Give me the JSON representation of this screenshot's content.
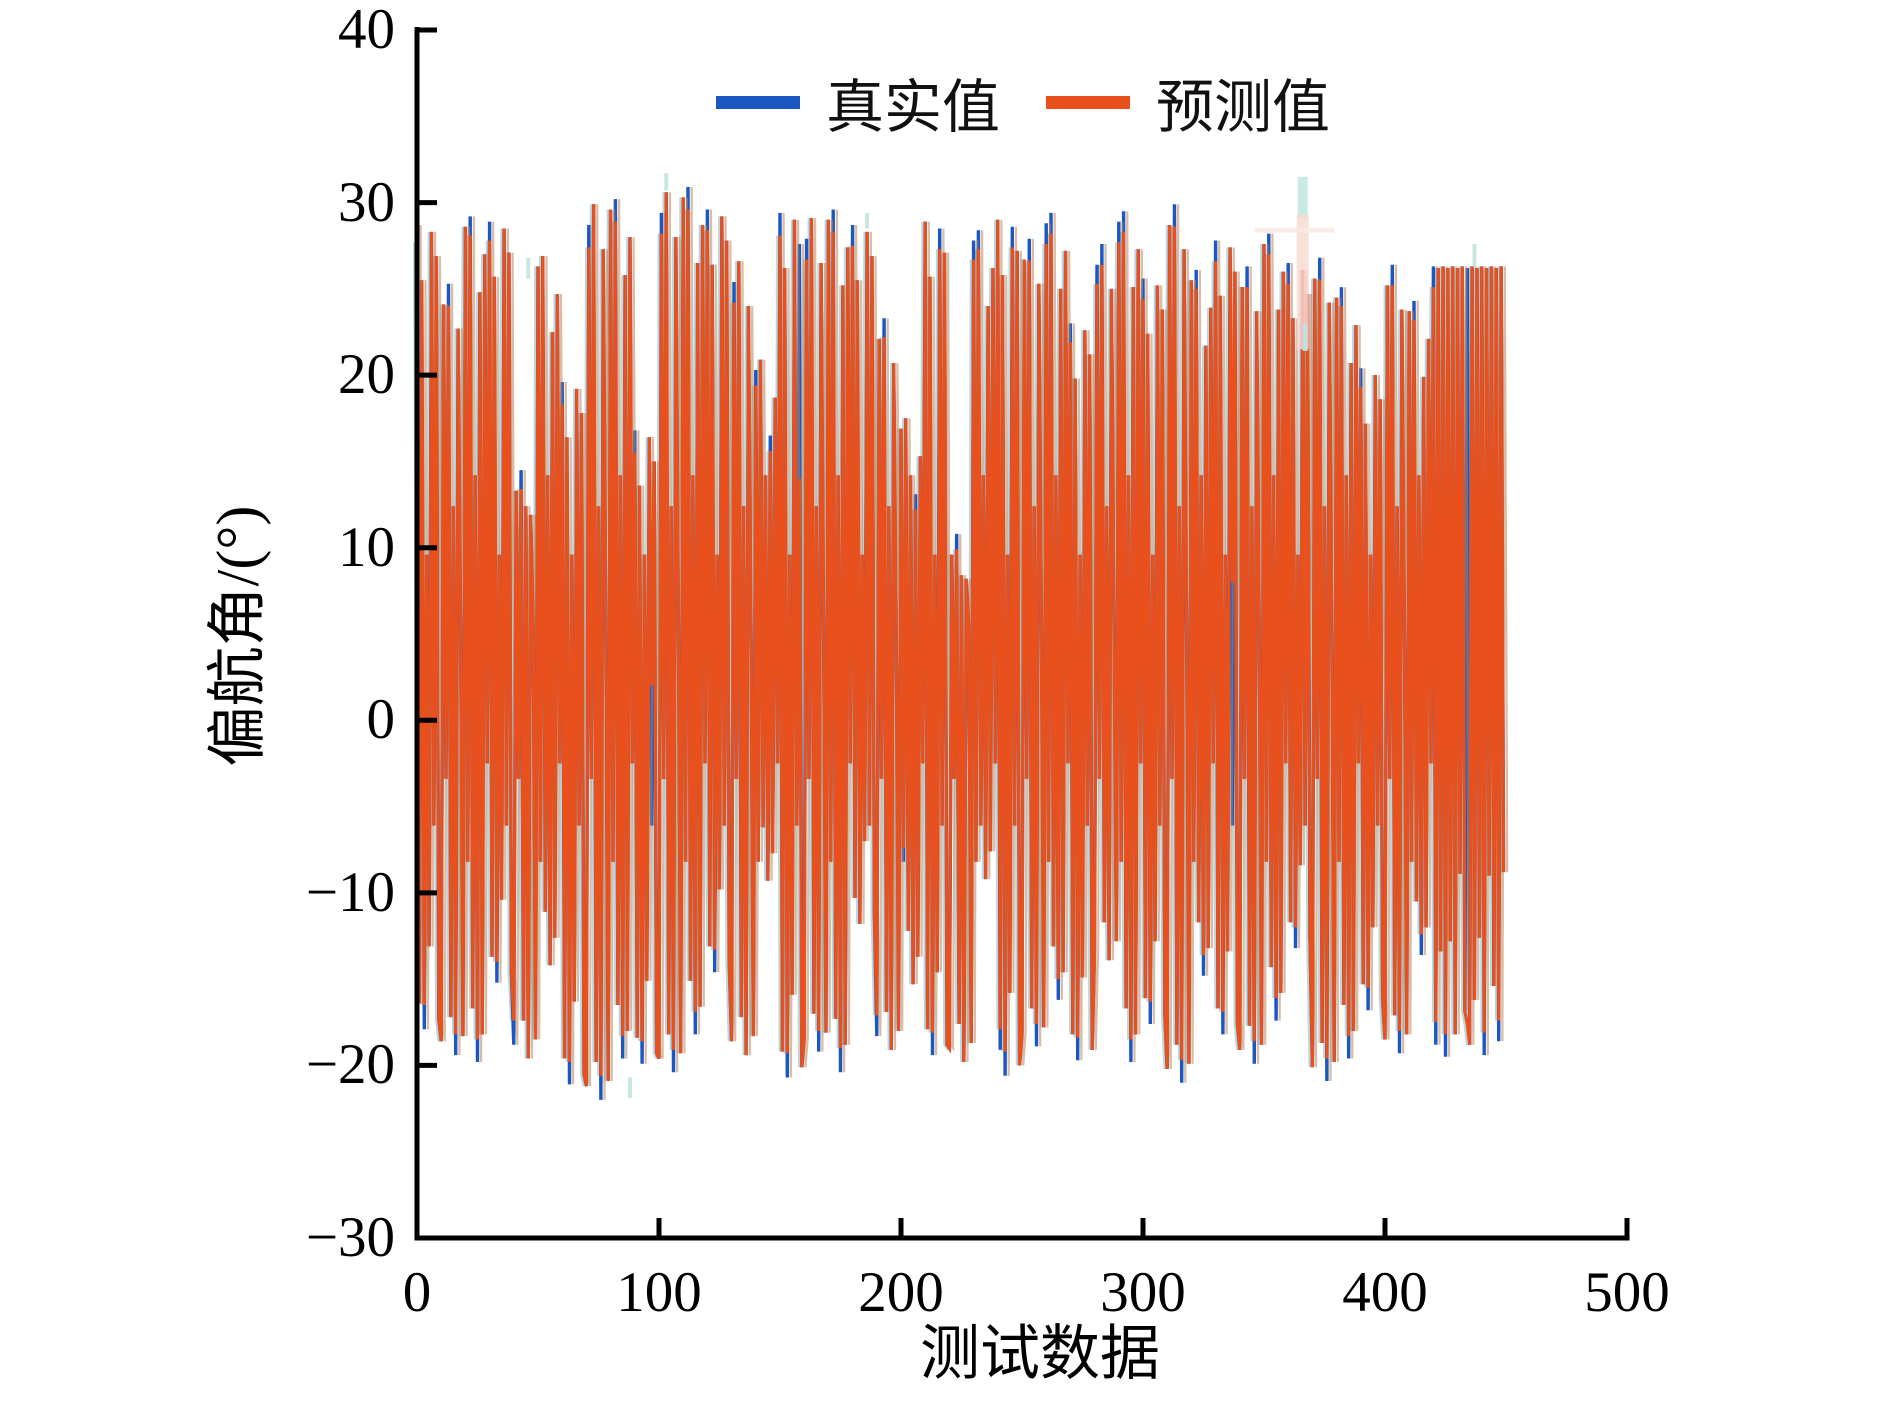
{
  "chart_data": {
    "type": "line",
    "title": "",
    "xlabel": "测试数据",
    "ylabel": "偏航角/(°)",
    "xlim": [
      0,
      500
    ],
    "ylim": [
      -30,
      40
    ],
    "grid": false,
    "legend_position": "top-center",
    "xticks": [
      0,
      100,
      200,
      300,
      400,
      500
    ],
    "xtick_labels": [
      "0",
      "100",
      "200",
      "300",
      "400",
      "500"
    ],
    "yticks": [
      40,
      30,
      20,
      10,
      0,
      -10,
      -20,
      -30
    ],
    "ytick_labels": [
      "40",
      "30",
      "20",
      "10",
      "0",
      "−10",
      "−20",
      "−30"
    ],
    "axis_color": "#000000",
    "ghost_color": "#b9855c",
    "halo_color": "#a6cdd6",
    "series": [
      {
        "name": "真实值",
        "color": "#1b57c2",
        "x_start": 0,
        "x_step": 1,
        "values": [
          28.7,
          -16.4,
          25.5,
          -17.9,
          9.6,
          -13.1,
          28.3,
          -6.1,
          26.9,
          -17.3,
          -18.6,
          24.1,
          -3.4,
          25.3,
          -17.2,
          12.4,
          -19.4,
          22.7,
          5.3,
          -18.3,
          28.6,
          -8.2,
          29.2,
          -16.7,
          14.2,
          -19.8,
          24.8,
          -18.2,
          27.0,
          -2.5,
          28.9,
          -13.7,
          25.7,
          -15.2,
          9.6,
          -10.4,
          28.5,
          -6.1,
          27.1,
          -14.6,
          -18.8,
          13.3,
          -3.4,
          14.5,
          -17.4,
          12.4,
          -19.6,
          11.9,
          5.3,
          -18.5,
          26.3,
          -8.2,
          26.9,
          -11.1,
          14.2,
          -14.2,
          22.5,
          -12.6,
          24.7,
          -2.5,
          19.6,
          -19.6,
          16.4,
          -21.1,
          9.6,
          -16.3,
          19.2,
          -6.1,
          17.8,
          -20.5,
          -21.2,
          28.7,
          -3.4,
          29.9,
          -19.8,
          12.4,
          -22.0,
          27.3,
          5.3,
          -20.9,
          29.6,
          -8.2,
          30.2,
          -16.5,
          14.2,
          -19.6,
          25.8,
          -18.0,
          28.0,
          -2.5,
          16.8,
          -18.4,
          13.6,
          -19.9,
          9.6,
          -15.1,
          16.4,
          -6.1,
          15.0,
          -19.3,
          -19.6,
          29.4,
          -3.4,
          30.6,
          -18.2,
          12.4,
          -20.4,
          28.0,
          5.3,
          -19.3,
          30.3,
          -8.2,
          30.9,
          -15.1,
          14.2,
          -18.2,
          26.5,
          -16.6,
          28.7,
          -2.5,
          29.6,
          -13.1,
          26.4,
          -14.6,
          9.6,
          -9.8,
          29.2,
          -6.1,
          27.8,
          -14.0,
          -18.6,
          25.4,
          -3.4,
          26.6,
          -17.2,
          12.4,
          -19.4,
          24.0,
          5.3,
          -18.3,
          20.3,
          -8.2,
          20.9,
          -6.2,
          14.2,
          -9.3,
          16.5,
          -7.7,
          18.7,
          -2.5,
          29.4,
          -19.2,
          26.2,
          -20.7,
          9.6,
          -15.9,
          29.0,
          -6.1,
          27.6,
          -20.1,
          -18.4,
          27.9,
          -3.4,
          29.1,
          -17.0,
          12.4,
          -19.2,
          26.5,
          5.3,
          -18.1,
          29.0,
          -8.2,
          29.6,
          -17.3,
          14.2,
          -20.4,
          25.2,
          -18.8,
          27.4,
          -2.5,
          28.7,
          -10.3,
          25.5,
          -11.8,
          9.6,
          -7.0,
          28.3,
          -6.1,
          26.9,
          -11.2,
          -18.3,
          22.1,
          -3.4,
          23.3,
          -16.9,
          12.4,
          -19.1,
          20.7,
          5.3,
          -18.0,
          16.9,
          -8.2,
          17.5,
          -12.2,
          14.2,
          -15.3,
          13.1,
          -13.7,
          15.3,
          -2.5,
          28.9,
          -17.9,
          25.7,
          -19.4,
          9.6,
          -14.6,
          28.5,
          -6.1,
          27.1,
          -18.8,
          -19.0,
          9.6,
          -3.4,
          10.8,
          -17.6,
          8.4,
          -19.8,
          8.2,
          5.3,
          -18.7,
          27.8,
          -8.2,
          28.4,
          -6.1,
          14.2,
          -9.2,
          24.0,
          -7.6,
          26.2,
          -2.5,
          29.0,
          -19.1,
          25.8,
          -20.6,
          9.6,
          -15.8,
          28.6,
          -6.1,
          27.2,
          -20.0,
          -18.1,
          26.7,
          -3.4,
          27.9,
          -16.7,
          12.4,
          -18.9,
          25.3,
          5.3,
          -17.8,
          28.8,
          -8.2,
          29.4,
          -13.1,
          14.2,
          -16.2,
          25.0,
          -14.6,
          27.2,
          -2.5,
          23.0,
          -18.2,
          19.8,
          -19.7,
          9.6,
          -14.9,
          22.6,
          -6.1,
          21.2,
          -19.1,
          -13.1,
          26.4,
          -3.4,
          27.6,
          -11.7,
          12.4,
          -13.9,
          25.0,
          5.3,
          -12.8,
          28.9,
          -8.2,
          29.5,
          -16.7,
          14.2,
          -19.8,
          25.1,
          -18.2,
          27.3,
          -2.5,
          25.6,
          -16.1,
          22.4,
          -17.6,
          9.6,
          -12.8,
          25.2,
          -6.1,
          23.8,
          -17.0,
          -20.2,
          28.7,
          -3.4,
          29.9,
          -18.8,
          12.4,
          -21.0,
          27.3,
          5.3,
          -19.9,
          25.5,
          -8.2,
          26.1,
          -11.7,
          14.2,
          -14.8,
          21.7,
          -13.2,
          23.9,
          -2.5,
          27.8,
          -16.7,
          24.6,
          -18.2,
          9.6,
          -13.4,
          27.4,
          -6.1,
          26.0,
          -17.6,
          -19.1,
          25.1,
          -3.4,
          26.3,
          -17.7,
          12.4,
          -19.9,
          23.7,
          5.3,
          -18.8,
          27.6,
          -8.2,
          28.2,
          -14.3,
          14.2,
          -17.4,
          23.8,
          -15.8,
          26.0,
          -2.5,
          26.5,
          -11.7,
          23.3,
          -13.2,
          9.6,
          -8.4,
          26.1,
          -6.1,
          24.7,
          -12.6,
          -20.1,
          25.6,
          -3.4,
          26.8,
          -18.7,
          12.4,
          -20.9,
          24.2,
          5.3,
          -19.8,
          24.5,
          -8.2,
          25.1,
          -16.5,
          14.2,
          -19.6,
          20.7,
          -18.0,
          22.9,
          -2.5,
          20.4,
          -15.3,
          17.2,
          -16.8,
          9.6,
          -12.0,
          20.0,
          -6.1,
          18.6,
          -16.2,
          -18.5,
          25.2,
          -3.4,
          26.4,
          -17.1,
          12.4,
          -19.3,
          23.8,
          5.3,
          -18.2,
          23.7,
          -8.2,
          24.3,
          -10.5,
          14.2,
          -13.6,
          19.9,
          -12.0,
          22.1,
          -2.5,
          26.3,
          -18.8,
          26.2,
          -13.4,
          26.3,
          -19.5,
          26.2,
          -12.8,
          26.3,
          -18.2,
          26.2,
          -8.9,
          26.3,
          -16.9,
          26.2,
          -18.8,
          26.3,
          -16.2,
          26.2,
          -12.6,
          26.3,
          -19.4,
          26.2,
          -9.0,
          26.3,
          -15.4,
          26.2,
          -18.6,
          26.3,
          -8.8
        ]
      },
      {
        "name": "预测值",
        "color": "#e8501d",
        "x_start": 0,
        "x_step": 1,
        "derived_from": "真实值",
        "overrides": [
          [
            0,
            27.7
          ],
          [
            3,
            -16.5
          ],
          [
            13,
            24.0
          ],
          [
            16,
            -18.2
          ],
          [
            22,
            28.1
          ],
          [
            25,
            -18.5
          ],
          [
            30,
            27.8
          ],
          [
            33,
            -14.0
          ],
          [
            40,
            -17.4
          ],
          [
            43,
            13.4
          ],
          [
            60,
            18.3
          ],
          [
            63,
            -19.8
          ],
          [
            71,
            27.4
          ],
          [
            76,
            -20.6
          ],
          [
            82,
            28.9
          ],
          [
            85,
            -18.3
          ],
          [
            90,
            15.5
          ],
          [
            93,
            -18.6
          ],
          [
            97,
            2.0
          ],
          [
            101,
            28.2
          ],
          [
            106,
            -19.1
          ],
          [
            112,
            29.6
          ],
          [
            115,
            -16.9
          ],
          [
            120,
            28.4
          ],
          [
            123,
            -13.3
          ],
          [
            131,
            24.2
          ],
          [
            140,
            19.4
          ],
          [
            146,
            15.6
          ],
          [
            150,
            28.1
          ],
          [
            153,
            -19.3
          ],
          [
            158,
            14.0
          ],
          [
            161,
            26.7
          ],
          [
            166,
            -18.0
          ],
          [
            172,
            28.3
          ],
          [
            175,
            -19.0
          ],
          [
            180,
            27.5
          ],
          [
            190,
            -17.1
          ],
          [
            193,
            22.2
          ],
          [
            201,
            -7.4
          ],
          [
            206,
            12.2
          ],
          [
            213,
            -18.1
          ],
          [
            216,
            27.3
          ],
          [
            223,
            9.9
          ],
          [
            230,
            26.7
          ],
          [
            232,
            27.3
          ],
          [
            241,
            -17.9
          ],
          [
            243,
            -19.2
          ],
          [
            246,
            27.4
          ],
          [
            253,
            26.6
          ],
          [
            256,
            -17.6
          ],
          [
            260,
            27.6
          ],
          [
            262,
            28.2
          ],
          [
            265,
            -15.0
          ],
          [
            270,
            21.9
          ],
          [
            273,
            -18.4
          ],
          [
            281,
            25.3
          ],
          [
            283,
            26.4
          ],
          [
            290,
            27.7
          ],
          [
            292,
            28.3
          ],
          [
            295,
            -18.5
          ],
          [
            300,
            24.4
          ],
          [
            303,
            -16.3
          ],
          [
            313,
            28.6
          ],
          [
            316,
            -19.7
          ],
          [
            322,
            25.0
          ],
          [
            325,
            -13.6
          ],
          [
            330,
            26.6
          ],
          [
            333,
            -16.9
          ],
          [
            337,
            8.0
          ],
          [
            343,
            25.1
          ],
          [
            346,
            -18.6
          ],
          [
            352,
            27.0
          ],
          [
            355,
            -16.1
          ],
          [
            360,
            25.3
          ],
          [
            363,
            -12.0
          ],
          [
            373,
            25.5
          ],
          [
            376,
            -19.6
          ],
          [
            382,
            24.0
          ],
          [
            385,
            -18.3
          ],
          [
            390,
            19.3
          ],
          [
            393,
            -15.5
          ],
          [
            403,
            25.2
          ],
          [
            406,
            -18.0
          ],
          [
            412,
            23.2
          ],
          [
            415,
            -12.4
          ],
          [
            420,
            25.1
          ],
          [
            421,
            -17.5
          ],
          [
            425,
            -18.2
          ],
          [
            434,
            -17.6
          ],
          [
            441,
            -18.1
          ],
          [
            447,
            -17.4
          ]
        ]
      }
    ],
    "artifacts": [
      {
        "kind": "vline",
        "x": 366,
        "v1": 29.1,
        "v2": 31.5,
        "color": "#c9e8e3",
        "w": 10,
        "opacity": 0.95
      },
      {
        "kind": "vline",
        "x": 366,
        "v1": 21.5,
        "v2": 29.3,
        "color": "#f9d9d2",
        "w": 12,
        "opacity": 0.8
      },
      {
        "kind": "vline",
        "x": 367,
        "v1": 21.4,
        "v2": 23.0,
        "color": "#bfe3de",
        "w": 5,
        "opacity": 0.9
      },
      {
        "kind": "hline",
        "x1": 346,
        "x2": 379,
        "v": 28.4,
        "color": "#fbeae5",
        "w": 5,
        "opacity": 0.9
      },
      {
        "kind": "vline",
        "x": 46,
        "v1": 25.6,
        "v2": 26.8,
        "color": "#bfe3de",
        "w": 4,
        "opacity": 0.85
      },
      {
        "kind": "vline",
        "x": 103,
        "v1": 30.7,
        "v2": 31.7,
        "color": "#bfe3de",
        "w": 4,
        "opacity": 0.85
      },
      {
        "kind": "vline",
        "x": 186,
        "v1": 28.5,
        "v2": 29.4,
        "color": "#bfe3de",
        "w": 4,
        "opacity": 0.85
      },
      {
        "kind": "vline",
        "x": 88,
        "v1": -21.9,
        "v2": -20.7,
        "color": "#bfe3de",
        "w": 4,
        "opacity": 0.85
      },
      {
        "kind": "vline",
        "x": 437,
        "v1": 26.3,
        "v2": 27.6,
        "color": "#bfe3de",
        "w": 4,
        "opacity": 0.85
      }
    ]
  }
}
